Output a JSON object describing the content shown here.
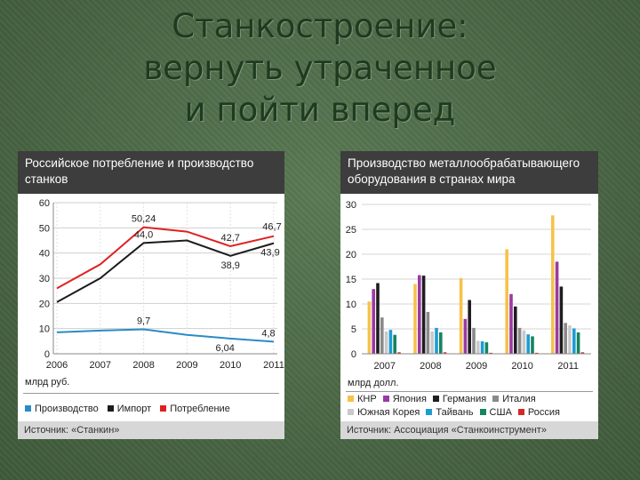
{
  "slide": {
    "title_lines": [
      "Станкостроение:",
      "вернуть утраченное",
      "и пойти вперед"
    ]
  },
  "colors": {
    "background": "#4f6d4a",
    "title": "#1e3a1f",
    "header": "#3d3d3d"
  },
  "chart_data": [
    {
      "type": "line",
      "title_lines": [
        "Российское потребление и производство",
        "станков"
      ],
      "x": [
        "2006",
        "2007",
        "2008",
        "2009",
        "2010",
        "2011"
      ],
      "ylim": [
        0,
        60
      ],
      "yticks": [
        "0",
        "10",
        "20",
        "30",
        "40",
        "50",
        "60"
      ],
      "unit": "млрд руб.",
      "grid": true,
      "series": [
        {
          "name": "Производство",
          "color": "#2a8bc6",
          "values": [
            8.5,
            9.2,
            9.7,
            7.5,
            6.04,
            4.8
          ]
        },
        {
          "name": "Импорт",
          "color": "#1c1c1c",
          "values": [
            20.5,
            30,
            44,
            45,
            38.9,
            43.9
          ]
        },
        {
          "name": "Потребление",
          "color": "#e02020",
          "values": [
            26,
            35.5,
            50.24,
            48.5,
            42.7,
            46.7
          ]
        }
      ],
      "annotations": [
        {
          "text": "50,24",
          "x": "2008",
          "y": 50.24
        },
        {
          "text": "44,0",
          "x": "2008",
          "y": 44
        },
        {
          "text": "42,7",
          "x": "2010",
          "y": 42.7
        },
        {
          "text": "46,7",
          "x": "2011",
          "y": 46.7
        },
        {
          "text": "38,9",
          "x": "2010",
          "y": 38.9
        },
        {
          "text": "43,9",
          "x": "2011",
          "y": 43.9
        },
        {
          "text": "9,7",
          "x": "2008",
          "y": 9.7
        },
        {
          "text": "6,04",
          "x": "2010",
          "y": 6.04
        },
        {
          "text": "4,8",
          "x": "2011",
          "y": 4.8
        }
      ],
      "source": "Источник: «Станкин»"
    },
    {
      "type": "bar",
      "title_lines": [
        "Производство металлообрабатывающего",
        "оборудования в странах мира"
      ],
      "categories": [
        "2007",
        "2008",
        "2009",
        "2010",
        "2011"
      ],
      "ylim": [
        0,
        30
      ],
      "yticks": [
        "0",
        "5",
        "10",
        "15",
        "20",
        "25",
        "30"
      ],
      "unit": "млрд долл.",
      "grid": true,
      "series": [
        {
          "name": "КНР",
          "color": "#f6c24a",
          "values": [
            10.5,
            14,
            15.2,
            21,
            27.8
          ]
        },
        {
          "name": "Япония",
          "color": "#9b39a5",
          "values": [
            13,
            15.8,
            7,
            12,
            18.5
          ]
        },
        {
          "name": "Германия",
          "color": "#1e1e1e",
          "values": [
            14.2,
            15.7,
            10.8,
            9.5,
            13.5
          ]
        },
        {
          "name": "Италия",
          "color": "#8a8a8a",
          "values": [
            7.3,
            8.4,
            5.2,
            5.2,
            6.2
          ]
        },
        {
          "name": "Южная Корея",
          "color": "#c9c9c9",
          "values": [
            4.5,
            4.5,
            2.6,
            4.7,
            5.7
          ]
        },
        {
          "name": "Тайвань",
          "color": "#1f9bd3",
          "values": [
            4.8,
            5.2,
            2.5,
            3.9,
            5.1
          ]
        },
        {
          "name": "США",
          "color": "#15845f",
          "values": [
            3.8,
            4.3,
            2.3,
            3.5,
            4.3
          ]
        },
        {
          "name": "Россия",
          "color": "#d62828",
          "values": [
            0.3,
            0.3,
            0.2,
            0.2,
            0.3
          ]
        }
      ],
      "source": "Источник: Ассоциация «Станкоинструмент»"
    }
  ]
}
